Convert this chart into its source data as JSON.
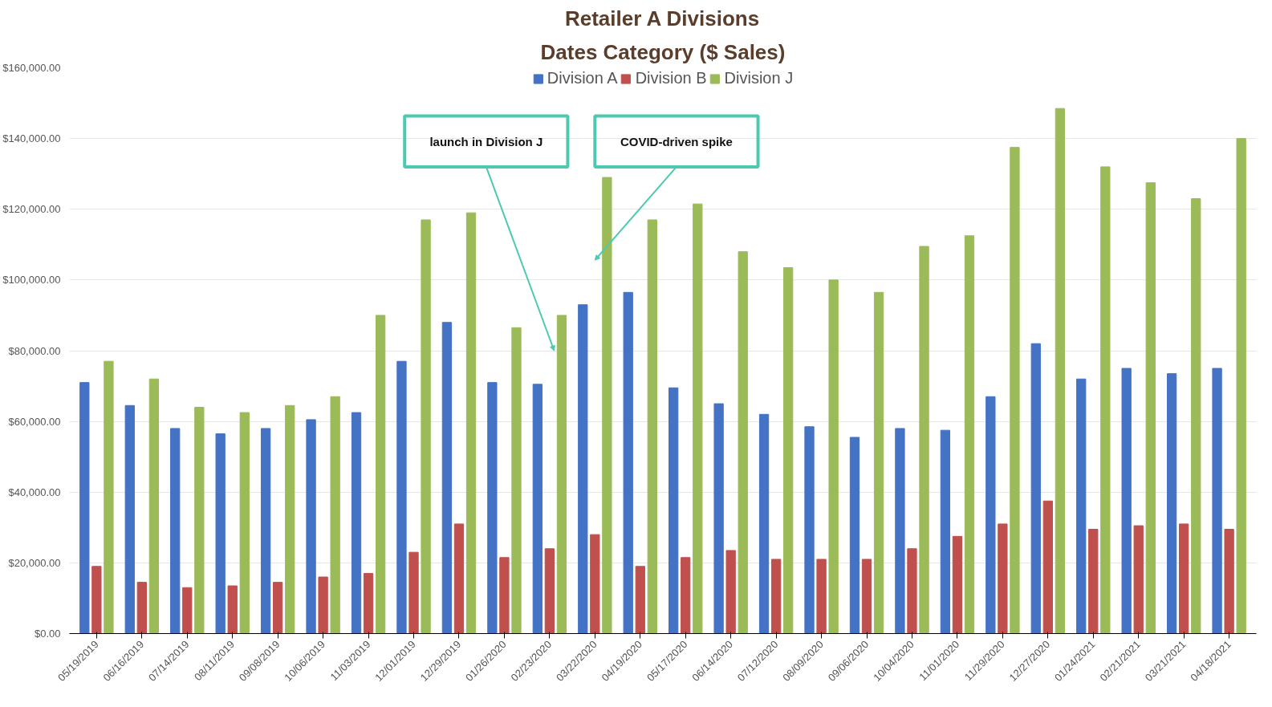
{
  "chart_data": {
    "type": "bar",
    "title": "Retailer A Divisions",
    "subtitle": "Dates Category ($ Sales)",
    "categories": [
      "05/19/2019",
      "06/16/2019",
      "07/14/2019",
      "08/11/2019",
      "09/08/2019",
      "10/06/2019",
      "11/03/2019",
      "12/01/2019",
      "12/29/2019",
      "01/26/2020",
      "02/23/2020",
      "03/22/2020",
      "04/19/2020",
      "05/17/2020",
      "06/14/2020",
      "07/12/2020",
      "08/09/2020",
      "09/06/2020",
      "10/04/2020",
      "11/01/2020",
      "11/29/2020",
      "12/27/2020",
      "01/24/2021",
      "02/21/2021",
      "03/21/2021",
      "04/18/2021"
    ],
    "series": [
      {
        "name": "Division A",
        "color": "#4472c4",
        "values": [
          71000,
          64500,
          58000,
          56500,
          58000,
          60500,
          62500,
          77000,
          88000,
          71000,
          70500,
          93000,
          96500,
          69500,
          65000,
          62000,
          58500,
          55500,
          58000,
          57500,
          67000,
          82000,
          72000,
          75000,
          73500,
          75000
        ]
      },
      {
        "name": "Division B",
        "color": "#c0504d",
        "values": [
          19000,
          14500,
          13000,
          13500,
          14500,
          16000,
          17000,
          23000,
          31000,
          21500,
          24000,
          28000,
          19000,
          21500,
          23500,
          21000,
          21000,
          21000,
          24000,
          27500,
          31000,
          37500,
          29500,
          30500,
          31000,
          29500
        ]
      },
      {
        "name": "Division J",
        "color": "#9bbb59",
        "values": [
          77000,
          72000,
          64000,
          62500,
          64500,
          67000,
          90000,
          117000,
          119000,
          86500,
          90000,
          129000,
          117000,
          121500,
          108000,
          103500,
          100000,
          96500,
          109500,
          112500,
          137500,
          148500,
          132000,
          127500,
          123000,
          140000
        ]
      }
    ],
    "ylim": [
      0,
      160000
    ],
    "yticks": [
      {
        "value": 0,
        "label": "$0.00"
      },
      {
        "value": 20000,
        "label": "$20,000.00"
      },
      {
        "value": 40000,
        "label": "$40,000.00"
      },
      {
        "value": 60000,
        "label": "$60,000.00"
      },
      {
        "value": 80000,
        "label": "$80,000.00"
      },
      {
        "value": 100000,
        "label": "$100,000.00"
      },
      {
        "value": 120000,
        "label": "$120,000.00"
      },
      {
        "value": 140000,
        "label": "$140,000.00"
      },
      {
        "value": 160000,
        "label": "$160,000.00"
      }
    ],
    "grid": "y",
    "legend": "top",
    "annotations": [
      "launch in Division J",
      "COVID-driven spike"
    ]
  }
}
